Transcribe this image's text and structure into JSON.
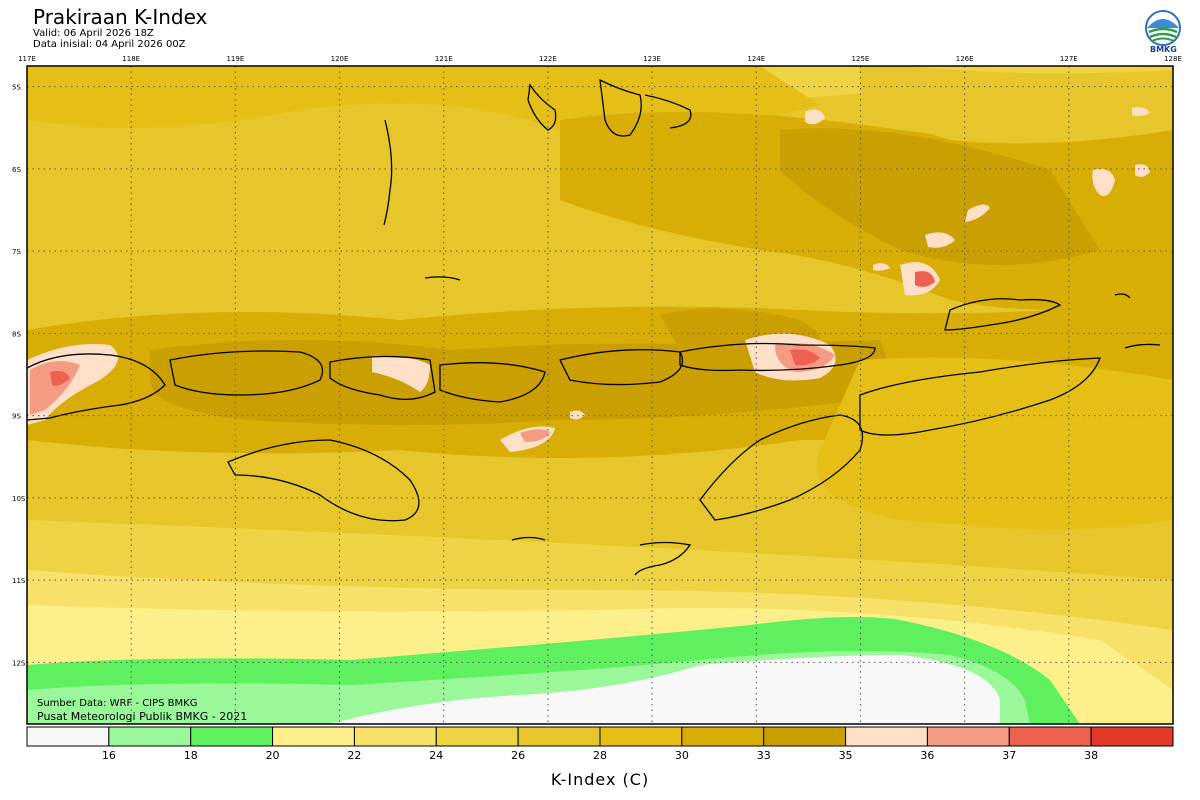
{
  "header": {
    "title": "Prakiraan K-Index",
    "valid": "Valid: 06 April 2026 18Z",
    "init": "Data inisial: 04 April 2026 00Z"
  },
  "logo": {
    "text": "BMKG",
    "icon": "bmkg-logo-icon"
  },
  "map": {
    "lon_labels": [
      "117E",
      "118E",
      "119E",
      "120E",
      "121E",
      "122E",
      "123E",
      "124E",
      "125E",
      "126E",
      "127E",
      "128E"
    ],
    "lat_labels": [
      "5S",
      "6S",
      "7S",
      "8S",
      "9S",
      "10S",
      "11S",
      "12S"
    ],
    "lon_range": [
      117,
      128
    ],
    "lat_range": [
      -4.75,
      -12.75
    ],
    "grid": "dotted"
  },
  "credits": {
    "source": "Sumber Data: WRF - CIPS BMKG",
    "producer": "Pusat Meteorologi Publik BMKG - 2021"
  },
  "colorbar": {
    "title": "K-Index (C)",
    "labels": [
      "16",
      "18",
      "20",
      "22",
      "24",
      "26",
      "28",
      "30",
      "33",
      "35",
      "36",
      "37",
      "38"
    ],
    "colors": [
      "#f8f8f8",
      "#9af79a",
      "#5ef05e",
      "#fdf08a",
      "#f7e16a",
      "#eed345",
      "#e6c62a",
      "#e5bf16",
      "#d8ad05",
      "#c99f02",
      "#fde0c7",
      "#f59b83",
      "#ec6150",
      "#e23a29"
    ]
  }
}
